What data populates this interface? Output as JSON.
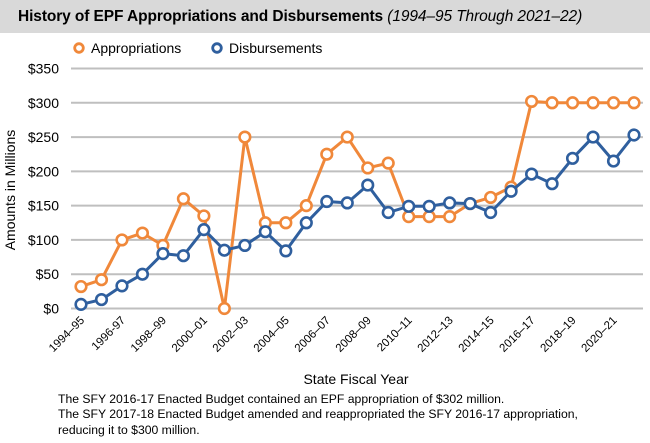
{
  "chart_data": {
    "type": "line",
    "title": "History of EPF Appropriations and Disbursements",
    "subtitle": "(1994–95 Through 2021–22)",
    "xlabel": "State Fiscal Year",
    "ylabel": "Amounts in Millions",
    "ylim": [
      0,
      350
    ],
    "y_ticks": [
      0,
      50,
      100,
      150,
      200,
      250,
      300,
      350
    ],
    "y_tick_labels": [
      "$0",
      "$50",
      "$100",
      "$150",
      "$200",
      "$250",
      "$300",
      "$350"
    ],
    "grid": true,
    "legend_position": "top-left",
    "x": [
      "1994–95",
      "1995–96",
      "1996–97",
      "1997–98",
      "1998–99",
      "1999–00",
      "2000–01",
      "2001–02",
      "2002–03",
      "2003–04",
      "2004–05",
      "2005–06",
      "2006–07",
      "2007–08",
      "2008–09",
      "2009–10",
      "2010–11",
      "2011–12",
      "2012–13",
      "2013–14",
      "2014–15",
      "2015–16",
      "2016–17",
      "2017–18",
      "2018–19",
      "2019–20",
      "2020–21",
      "2021–22"
    ],
    "x_tick_labels": [
      {
        "index": 0,
        "label": "1994–95"
      },
      {
        "index": 2,
        "label": "1996-97"
      },
      {
        "index": 4,
        "label": "1998–99"
      },
      {
        "index": 6,
        "label": "2000–01"
      },
      {
        "index": 8,
        "label": "2002–03"
      },
      {
        "index": 10,
        "label": "2004–05"
      },
      {
        "index": 12,
        "label": "2006–07"
      },
      {
        "index": 14,
        "label": "2008–09"
      },
      {
        "index": 16,
        "label": "2010–11"
      },
      {
        "index": 18,
        "label": "2012–13"
      },
      {
        "index": 20,
        "label": "2014–15"
      },
      {
        "index": 22,
        "label": "2016–17"
      },
      {
        "index": 24,
        "label": "2018–19"
      },
      {
        "index": 26,
        "label": "2020–21"
      }
    ],
    "series": [
      {
        "name": "Appropriations",
        "color": "#f0883a",
        "values": [
          32,
          42,
          100,
          110,
          92,
          160,
          135,
          0,
          250,
          125,
          125,
          150,
          225,
          250,
          205,
          212,
          134,
          134,
          134,
          153,
          162,
          177,
          302,
          300,
          300,
          300,
          300,
          300
        ]
      },
      {
        "name": "Disbursements",
        "color": "#2f5f9e",
        "values": [
          6,
          13,
          33,
          50,
          80,
          77,
          115,
          85,
          92,
          112,
          84,
          125,
          156,
          154,
          180,
          140,
          149,
          149,
          154,
          153,
          140,
          171,
          196,
          182,
          219,
          250,
          215,
          253
        ]
      }
    ]
  },
  "notes": [
    "The SFY 2016-17 Enacted Budget contained an EPF appropriation of $302 million.",
    "The SFY 2017-18 Enacted Budget amended and reappropriated the SFY 2016-17 appropriation,",
    "reducing it to $300 million."
  ]
}
